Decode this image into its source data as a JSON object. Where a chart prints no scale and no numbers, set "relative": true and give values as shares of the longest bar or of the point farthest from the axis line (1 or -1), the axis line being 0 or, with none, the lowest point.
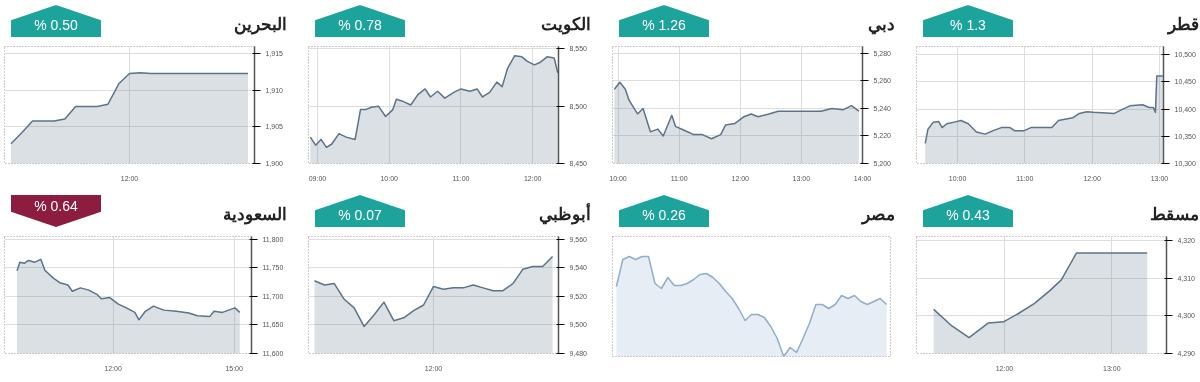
{
  "chart_data": [
    {
      "type": "area",
      "title": "البحرين",
      "annotations": [
        "% 0.50"
      ],
      "categories": [
        null,
        null,
        null,
        null,
        null,
        null,
        null,
        null,
        null,
        null,
        null,
        "12:00",
        null,
        null,
        null,
        null,
        null,
        null,
        null,
        null,
        null,
        null,
        null
      ],
      "series": [
        {
          "color": "#5d7389",
          "values": [
            1902.7,
            1904.2,
            1905.8,
            1905.8,
            1905.8,
            1906.1,
            1907.8,
            1907.8,
            1907.8,
            1908.1,
            1910.9,
            1912.3,
            1912.4,
            1912.3,
            1912.3,
            1912.3,
            1912.3,
            1912.3,
            1912.3,
            1912.3,
            1912.3,
            1912.3,
            1912.3
          ]
        }
      ],
      "ylim": [
        1900,
        1916
      ],
      "yticks": [
        {
          "value": 1900,
          "label": "1,900"
        },
        {
          "value": 1905,
          "label": "1,905"
        },
        {
          "value": 1910,
          "label": "1,910"
        },
        {
          "value": 1915,
          "label": "1,915"
        }
      ],
      "grid": true
    },
    {
      "type": "area",
      "title": "الكويت",
      "annotations": [
        "% 0.78"
      ],
      "x": [
        8.9,
        8.975,
        9.05,
        9.125,
        9.2,
        9.3,
        9.4,
        9.525,
        9.6,
        9.675,
        9.75,
        9.85,
        9.95,
        10.05,
        10.1,
        10.2,
        10.3,
        10.4,
        10.5,
        10.575,
        10.675,
        10.775,
        10.9,
        11.0,
        11.125,
        11.225,
        11.3,
        11.4,
        11.5,
        11.575,
        11.65,
        11.75,
        11.85,
        11.925,
        12.025,
        12.1,
        12.2,
        12.3,
        12.35
      ],
      "series": [
        {
          "color": "#5d7389",
          "values": [
            8473,
            8466,
            8471,
            8464,
            8467,
            8476,
            8473,
            8471,
            8497,
            8497,
            8499,
            8500,
            8491,
            8497,
            8506,
            8504,
            8501,
            8510,
            8515,
            8508,
            8513,
            8507,
            8512,
            8515,
            8513,
            8515,
            8508,
            8512,
            8521,
            8517,
            8533,
            8544,
            8543,
            8539,
            8536,
            8538,
            8543,
            8542,
            8529
          ]
        }
      ],
      "xlim": [
        8.875,
        12.36
      ],
      "ylim": [
        8450,
        8552
      ],
      "xticks": [
        {
          "value": 9,
          "label": "09:00"
        },
        {
          "value": 10,
          "label": "10:00"
        },
        {
          "value": 11,
          "label": "11:00"
        },
        {
          "value": 12,
          "label": "12:00"
        }
      ],
      "yticks": [
        {
          "value": 8450,
          "label": "8,450"
        },
        {
          "value": 8500,
          "label": "8,500"
        },
        {
          "value": 8550,
          "label": "8,550"
        }
      ],
      "grid": true
    },
    {
      "type": "area",
      "title": "دبي",
      "annotations": [
        "% 1.26"
      ],
      "x": [
        9.94,
        10.03,
        10.12,
        10.18,
        10.32,
        10.41,
        10.53,
        10.65,
        10.74,
        10.88,
        10.94,
        11.09,
        11.24,
        11.38,
        11.53,
        11.68,
        11.76,
        11.91,
        12.06,
        12.18,
        12.29,
        12.47,
        12.62,
        12.79,
        12.97,
        13.15,
        13.32,
        13.5,
        13.68,
        13.82,
        13.94
      ],
      "series": [
        {
          "color": "#5d7389",
          "values": [
            5254,
            5259,
            5254,
            5246,
            5236,
            5240,
            5223,
            5225,
            5220,
            5235,
            5227,
            5224,
            5221,
            5221,
            5218,
            5221,
            5228,
            5229,
            5234,
            5236,
            5234,
            5236,
            5238,
            5238,
            5238,
            5238,
            5238,
            5240,
            5239,
            5242,
            5238
          ]
        }
      ],
      "xlim": [
        9.91,
        14.0
      ],
      "ylim": [
        5200,
        5285
      ],
      "xticks": [
        {
          "value": 10,
          "label": "10:00"
        },
        {
          "value": 11,
          "label": "11:00"
        },
        {
          "value": 12,
          "label": "12:00"
        },
        {
          "value": 13,
          "label": "13:00"
        },
        {
          "value": 14,
          "label": "14:00"
        }
      ],
      "yticks": [
        {
          "value": 5200,
          "label": "5,200"
        },
        {
          "value": 5220,
          "label": "5,220"
        },
        {
          "value": 5240,
          "label": "5,240"
        },
        {
          "value": 5260,
          "label": "5,260"
        },
        {
          "value": 5280,
          "label": "5,280"
        }
      ],
      "grid": true
    },
    {
      "type": "area",
      "title": "قطر",
      "annotations": [
        "% 1.3"
      ],
      "x": [
        9.52,
        9.56,
        9.64,
        9.72,
        9.77,
        9.84,
        9.95,
        10.05,
        10.16,
        10.28,
        10.41,
        10.52,
        10.65,
        10.78,
        10.85,
        10.98,
        11.09,
        11.4,
        11.5,
        11.71,
        11.81,
        11.92,
        12.02,
        12.33,
        12.44,
        12.56,
        12.75,
        12.85,
        12.91,
        12.94,
        12.96,
        13.05
      ],
      "series": [
        {
          "color": "#5d7389",
          "values": [
            10337,
            10363,
            10376,
            10377,
            10366,
            10373,
            10376,
            10379,
            10373,
            10358,
            10354,
            10360,
            10366,
            10366,
            10360,
            10360,
            10366,
            10366,
            10379,
            10384,
            10392,
            10395,
            10394,
            10392,
            10399,
            10406,
            10408,
            10403,
            10403,
            10394,
            10461,
            10461
          ]
        }
      ],
      "xlim": [
        9.39,
        13.06
      ],
      "ylim": [
        10300,
        10515
      ],
      "xticks": [
        {
          "value": 10,
          "label": "10:00"
        },
        {
          "value": 11,
          "label": "11:00"
        },
        {
          "value": 12,
          "label": "12:00"
        },
        {
          "value": 13,
          "label": "13:00"
        }
      ],
      "yticks": [
        {
          "value": 10300,
          "label": "10,300"
        },
        {
          "value": 10350,
          "label": "10,350"
        },
        {
          "value": 10400,
          "label": "10,400"
        },
        {
          "value": 10450,
          "label": "10,450"
        },
        {
          "value": 10500,
          "label": "10,500"
        }
      ],
      "grid": true
    },
    {
      "type": "area",
      "title": "السعودية",
      "annotations": [
        "% 0.64"
      ],
      "x": [
        9.62,
        9.69,
        9.8,
        9.9,
        10.06,
        10.21,
        10.31,
        10.52,
        10.68,
        10.88,
        10.99,
        11.19,
        11.4,
        11.61,
        11.71,
        11.92,
        12.12,
        12.33,
        12.54,
        12.64,
        12.8,
        13.0,
        13.26,
        13.57,
        13.88,
        14.09,
        14.4,
        14.5,
        14.71,
        15.02,
        15.14
      ],
      "series": [
        {
          "color": "#5d7389",
          "values": [
            11745,
            11760,
            11758,
            11763,
            11760,
            11765,
            11746,
            11732,
            11724,
            11720,
            11709,
            11715,
            11711,
            11703,
            11696,
            11698,
            11687,
            11680,
            11672,
            11659,
            11674,
            11683,
            11676,
            11674,
            11671,
            11666,
            11665,
            11674,
            11672,
            11680,
            11672
          ]
        }
      ],
      "xlim": [
        9.31,
        15.43
      ],
      "ylim": [
        11600,
        11805
      ],
      "xticks": [
        {
          "value": 12,
          "label": "12:00"
        },
        {
          "value": 15,
          "label": "15:00"
        }
      ],
      "yticks": [
        {
          "value": 11600,
          "label": "11,600"
        },
        {
          "value": 11650,
          "label": "11,650"
        },
        {
          "value": 11700,
          "label": "11,700"
        },
        {
          "value": 11750,
          "label": "11,750"
        },
        {
          "value": 11800,
          "label": "11,800"
        }
      ],
      "grid": true
    },
    {
      "type": "area",
      "title": "أبوظبي",
      "annotations": [
        "% 0.07"
      ],
      "categories": [
        null,
        null,
        null,
        null,
        null,
        null,
        null,
        null,
        null,
        null,
        null,
        null,
        "12:00",
        null,
        null,
        null,
        null,
        null,
        null,
        null,
        null,
        null,
        null,
        null,
        null
      ],
      "series": [
        {
          "color": "#5d7389",
          "values": [
            9531,
            9528,
            9529,
            9518,
            9512,
            9499,
            9507,
            9516,
            9503,
            9505,
            9510,
            9514,
            9527,
            9525,
            9526,
            9526,
            9528,
            9526,
            9524,
            9524,
            9529,
            9539,
            9541,
            9541,
            9548
          ]
        }
      ],
      "ylim": [
        9480,
        9562
      ],
      "yticks": [
        {
          "value": 9480,
          "label": "9,480"
        },
        {
          "value": 9500,
          "label": "9,500"
        },
        {
          "value": 9520,
          "label": "9,520"
        },
        {
          "value": 9540,
          "label": "9,540"
        },
        {
          "value": 9560,
          "label": "9,560"
        }
      ],
      "grid": true
    },
    {
      "type": "area",
      "title": "مصر",
      "annotations": [
        "% 0.26"
      ],
      "relative": true,
      "categories": [
        null,
        null,
        null,
        null,
        null,
        null,
        null,
        null,
        null,
        null,
        null,
        null,
        null,
        null,
        null,
        null,
        null,
        null,
        null,
        null,
        null,
        null,
        null,
        null,
        null,
        null,
        null,
        null,
        null,
        null,
        null,
        null,
        null,
        null,
        null,
        null,
        null,
        null,
        null,
        null,
        null,
        null,
        null
      ],
      "series": [
        {
          "color": "#8eaecb",
          "values": [
            0.7,
            0.97,
            1.0,
            0.97,
            1.0,
            1.0,
            0.73,
            0.68,
            0.79,
            0.71,
            0.71,
            0.73,
            0.77,
            0.82,
            0.83,
            0.79,
            0.73,
            0.65,
            0.58,
            0.48,
            0.36,
            0.42,
            0.42,
            0.39,
            0.3,
            0.18,
            0.0,
            0.09,
            0.04,
            0.18,
            0.33,
            0.52,
            0.52,
            0.48,
            0.52,
            0.61,
            0.58,
            0.61,
            0.55,
            0.52,
            0.55,
            0.58,
            0.52
          ]
        }
      ]
    },
    {
      "type": "area",
      "title": "مسقط",
      "annotations": [
        "% 0.43"
      ],
      "x": [
        11.34,
        11.51,
        11.67,
        11.85,
        11.99,
        12.13,
        12.28,
        12.42,
        12.53,
        12.67,
        13.33
      ],
      "series": [
        {
          "color": "#5d7389",
          "values": [
            4301.7,
            4297.3,
            4294.2,
            4298.1,
            4298.4,
            4300.6,
            4303.3,
            4306.6,
            4309.5,
            4316.6,
            4316.6
          ]
        }
      ],
      "xlim": [
        11.18,
        13.51
      ],
      "ylim": [
        4290,
        4321
      ],
      "xticks": [
        {
          "value": 12,
          "label": "12:00"
        },
        {
          "value": 13,
          "label": "13:00"
        }
      ],
      "yticks": [
        {
          "value": 4290,
          "label": "4,290"
        },
        {
          "value": 4300,
          "label": "4,300"
        },
        {
          "value": 4310,
          "label": "4,310"
        },
        {
          "value": 4320,
          "label": "4,320"
        }
      ],
      "grid": true
    }
  ]
}
